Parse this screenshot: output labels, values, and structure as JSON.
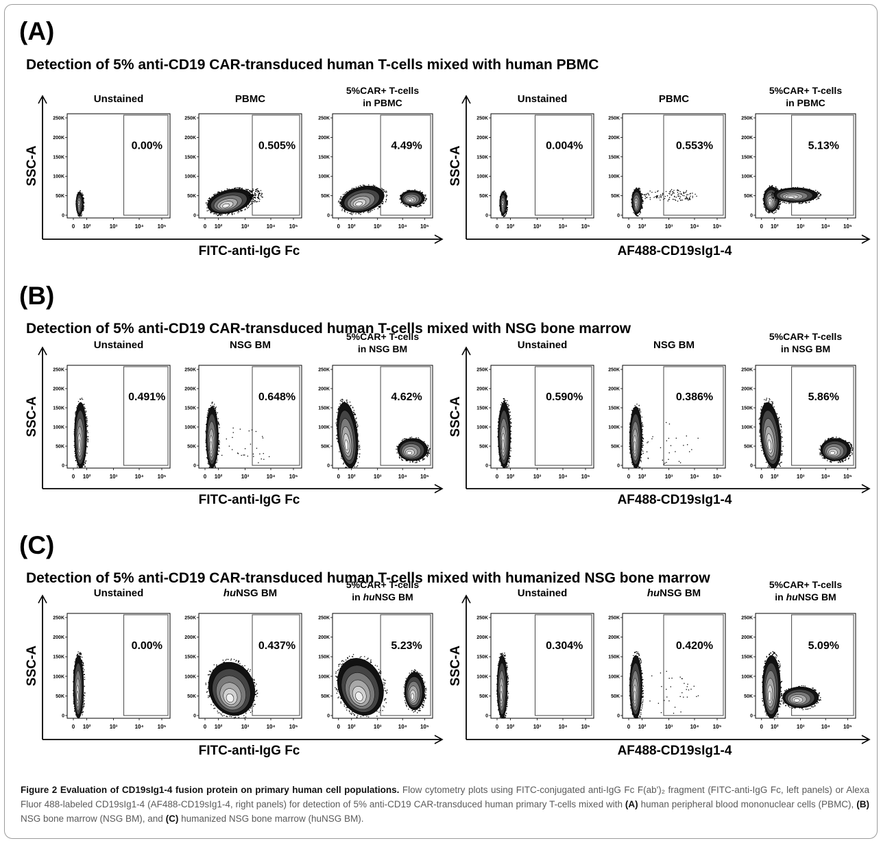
{
  "panels": [
    {
      "letter": "(A)",
      "title": "Detection of 5% anti-CD19 CAR-transduced human T-cells mixed with human PBMC",
      "groups": [
        {
          "xlabel": "FITC-anti-IgG Fc",
          "ylabel": "SSC-A",
          "plots": [
            {
              "label": [
                "Unstained"
              ],
              "pct": "0.00%",
              "profile": "pbmc_unst"
            },
            {
              "label": [
                "PBMC"
              ],
              "pct": "0.505%",
              "profile": "pbmc"
            },
            {
              "label": [
                "5%CAR+ T-cells",
                "in PBMC"
              ],
              "pct": "4.49%",
              "profile": "pbmc_car"
            }
          ]
        },
        {
          "xlabel": "AF488-CD19sIg1-4",
          "ylabel": "SSC-A",
          "plots": [
            {
              "label": [
                "Unstained"
              ],
              "pct": "0.004%",
              "profile": "pbmc_unst"
            },
            {
              "label": [
                "PBMC"
              ],
              "pct": "0.553%",
              "profile": "pbmc_b"
            },
            {
              "label": [
                "5%CAR+ T-cells",
                "in PBMC"
              ],
              "pct": "5.13%",
              "profile": "pbmc_car_b"
            }
          ]
        }
      ]
    },
    {
      "letter": "(B)",
      "title": "Detection of 5% anti-CD19 CAR-transduced human T-cells mixed with NSG bone marrow",
      "groups": [
        {
          "xlabel": "FITC-anti-IgG Fc",
          "ylabel": "SSC-A",
          "plots": [
            {
              "label": [
                "Unstained"
              ],
              "pct": "0.491%",
              "profile": "bm_unst"
            },
            {
              "label": [
                "NSG BM"
              ],
              "pct": "0.648%",
              "profile": "bm"
            },
            {
              "label": [
                "5%CAR+ T-cells",
                "in NSG BM"
              ],
              "pct": "4.62%",
              "profile": "bm_car"
            }
          ]
        },
        {
          "xlabel": "AF488-CD19sIg1-4",
          "ylabel": "SSC-A",
          "plots": [
            {
              "label": [
                "Unstained"
              ],
              "pct": "0.590%",
              "profile": "bm_unst"
            },
            {
              "label": [
                "NSG BM"
              ],
              "pct": "0.386%",
              "profile": "bm"
            },
            {
              "label": [
                "5%CAR+ T-cells",
                "in NSG BM"
              ],
              "pct": "5.86%",
              "profile": "bm_car"
            }
          ]
        }
      ]
    },
    {
      "letter": "(C)",
      "title": "Detection of 5% anti-CD19 CAR-transduced human T-cells mixed with humanized NSG bone marrow",
      "groups": [
        {
          "xlabel": "FITC-anti-IgG Fc",
          "ylabel": "SSC-A",
          "plots": [
            {
              "label": [
                "Unstained"
              ],
              "pct": "0.00%",
              "profile": "hu_unst"
            },
            {
              "label": [
                "huNSG BM"
              ],
              "pct": "0.437%",
              "profile": "hu"
            },
            {
              "label": [
                "5%CAR+ T-cells",
                "in huNSG BM"
              ],
              "pct": "5.23%",
              "profile": "hu_car"
            }
          ]
        },
        {
          "xlabel": "AF488-CD19sIg1-4",
          "ylabel": "SSC-A",
          "plots": [
            {
              "label": [
                "Unstained"
              ],
              "pct": "0.304%",
              "profile": "hu_unst"
            },
            {
              "label": [
                "huNSG BM"
              ],
              "pct": "0.420%",
              "profile": "hu_b"
            },
            {
              "label": [
                "5%CAR+ T-cells",
                "in huNSG BM"
              ],
              "pct": "5.09%",
              "profile": "hu_car_b"
            }
          ]
        }
      ]
    }
  ],
  "axis_ticks": {
    "y": [
      "250K",
      "200K",
      "150K",
      "100K",
      "50K",
      "0"
    ],
    "x": [
      "0",
      "10²",
      "10³",
      "10⁴",
      "10⁵"
    ]
  },
  "caption": {
    "label": "Figure 2",
    "title": "Evaluation of CD19sIg1-4 fusion protein on primary human cell populations.",
    "text_1": "Flow cytometry plots using FITC-conjugated anti-IgG Fc F(ab')₂ fragment (FITC-anti-IgG Fc, left panels) or Alexa Fluor 488-labeled CD19sIg1-4 (AF488-CD19sIg1-4, right panels) for detection of 5% anti-CD19 CAR-transduced human primary T-cells mixed with",
    "ref_a": "(A)",
    "text_2": "human peripheral blood mononuclear cells (PBMC),",
    "ref_b": "(B)",
    "text_3": "NSG bone marrow (NSG BM), and",
    "ref_c": "(C)",
    "text_4": "humanized NSG bone marrow (huNSG BM)."
  }
}
